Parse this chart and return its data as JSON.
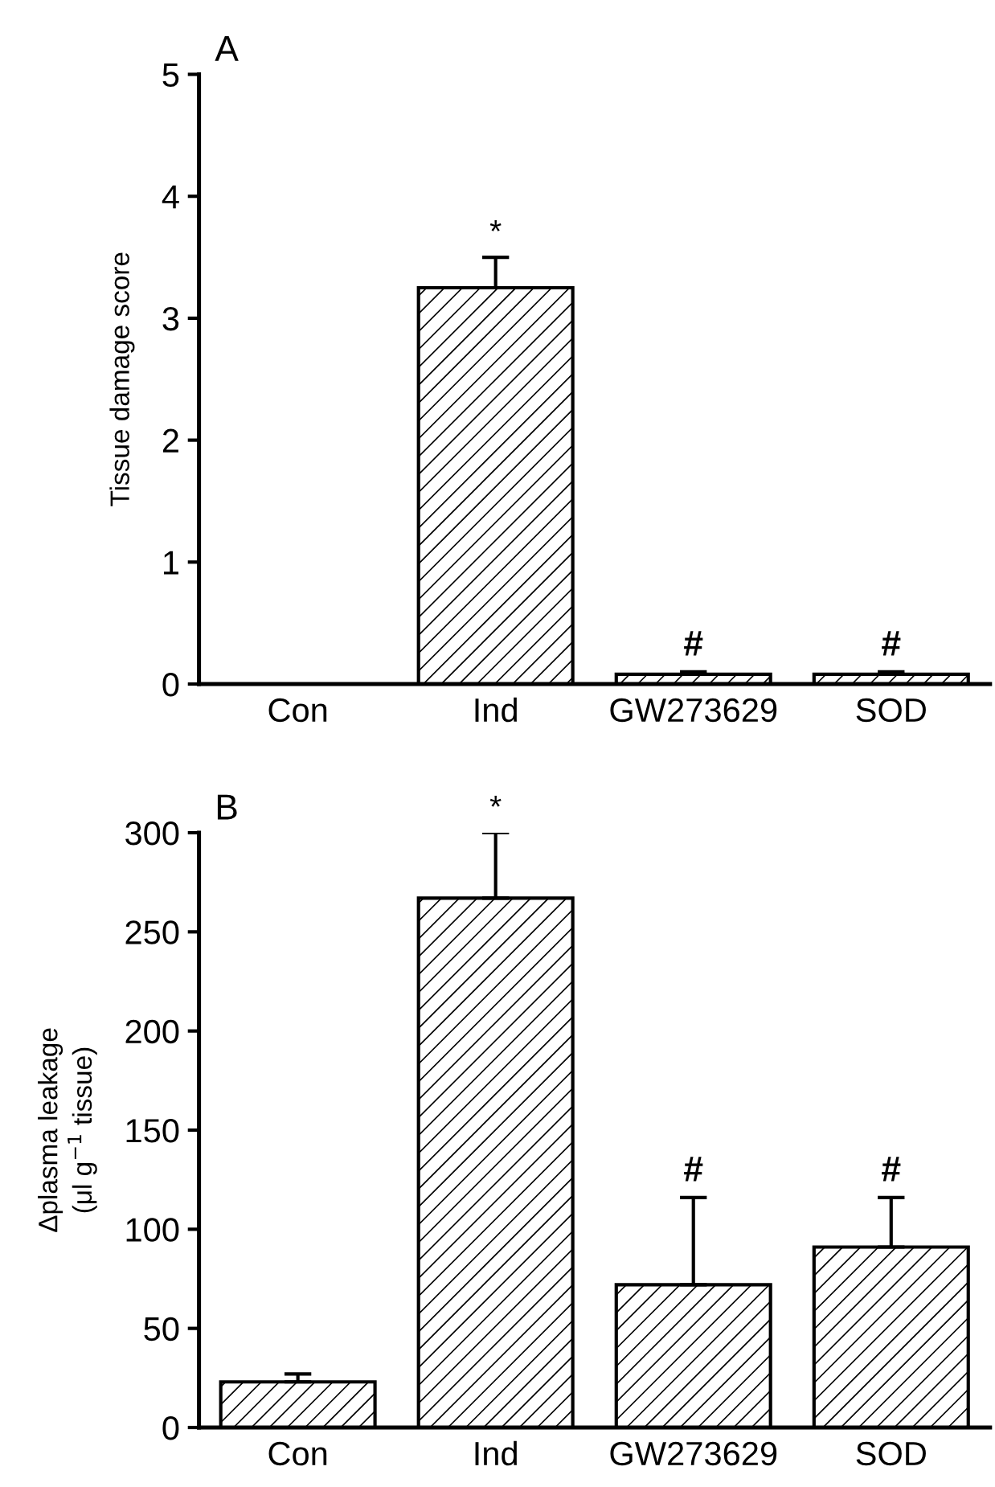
{
  "chart_data": [
    {
      "type": "bar",
      "title": "A",
      "ylabel": "Tissue damage score",
      "categories": [
        "Con",
        "Ind",
        "GW273629",
        "SOD"
      ],
      "values": [
        0,
        3.25,
        0.08,
        0.08
      ],
      "errors": [
        null,
        0.25,
        0.02,
        0.02
      ],
      "color": "#000000",
      "ylim": [
        0,
        5
      ],
      "yticks": [
        0,
        1,
        2,
        3,
        4,
        5
      ],
      "grid": false,
      "annotations": [
        {
          "text": "*",
          "x": "Ind",
          "y": 3.5
        },
        {
          "text": "#",
          "x": "GW273629",
          "y": 0.1
        },
        {
          "text": "#",
          "x": "SOD",
          "y": 0.1
        }
      ]
    },
    {
      "type": "bar",
      "title": "B",
      "ylabel": "Δplasma leakage\n(μl g$^{−1}$ tissue)",
      "categories": [
        "Con",
        "Ind",
        "GW273629",
        "SOD"
      ],
      "values": [
        23,
        267,
        72,
        91
      ],
      "errors": [
        4,
        33,
        44,
        25
      ],
      "color": "#000000",
      "ylim": [
        0,
        300
      ],
      "yticks": [
        0,
        50,
        100,
        150,
        200,
        250,
        300
      ],
      "grid": false,
      "annotations": [
        {
          "text": "*",
          "x": "Ind",
          "y": 300
        },
        {
          "text": "#",
          "x": "GW273629",
          "y": 116
        },
        {
          "text": "#",
          "x": "SOD",
          "y": 116
        }
      ]
    }
  ]
}
